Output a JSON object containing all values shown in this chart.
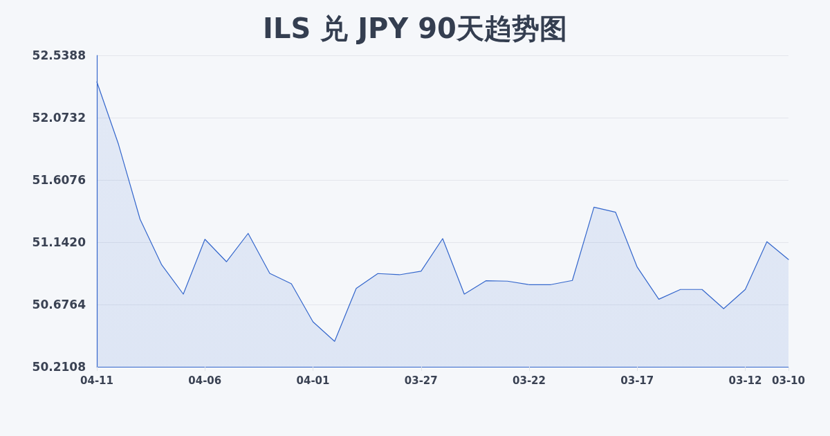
{
  "chart_data": {
    "type": "area",
    "title": "ILS 兑 JPY 90天趋势图",
    "categories": [
      "04-11",
      null,
      null,
      null,
      null,
      "04-06",
      null,
      null,
      null,
      null,
      "04-01",
      null,
      null,
      null,
      null,
      "03-27",
      null,
      null,
      null,
      null,
      "03-22",
      null,
      null,
      null,
      null,
      "03-17",
      null,
      null,
      null,
      null,
      "03-12",
      null,
      "03-10"
    ],
    "series": [
      {
        "color": "#3366cc",
        "values": [
          52.341,
          51.875,
          51.314,
          50.973,
          50.754,
          51.164,
          50.996,
          51.208,
          50.909,
          50.832,
          50.547,
          50.401,
          50.797,
          50.908,
          50.899,
          50.925,
          51.169,
          50.754,
          50.854,
          50.851,
          50.825,
          50.825,
          50.856,
          51.404,
          51.366,
          50.956,
          50.716,
          50.789,
          50.789,
          50.645,
          50.789,
          51.146,
          51.013
        ]
      }
    ],
    "ylim": [
      50.2108,
      52.5388
    ],
    "yticks": [
      50.2108,
      50.6764,
      {
        "value": 51.142,
        "label": "51.1420"
      },
      51.6076,
      52.0732,
      52.5388
    ],
    "grid": "y"
  }
}
